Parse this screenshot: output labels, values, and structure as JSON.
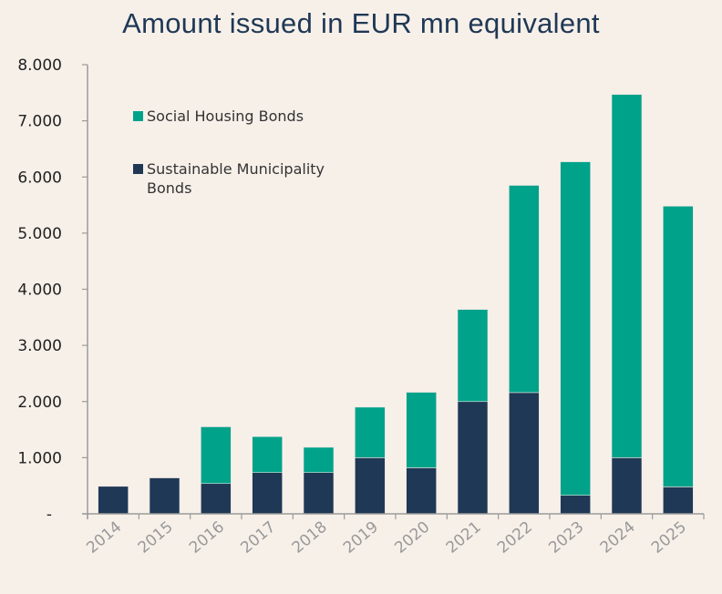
{
  "chart_data": {
    "type": "bar",
    "stacked": true,
    "title": "Amount issued in EUR mn equivalent",
    "categories": [
      "2014",
      "2015",
      "2016",
      "2017",
      "2018",
      "2019",
      "2020",
      "2021",
      "2022",
      "2023",
      "2024",
      "2025"
    ],
    "series": [
      {
        "name": "Sustainable Municipality Bonds",
        "color": "#1f3855",
        "values": [
          490,
          640,
          540,
          735,
          735,
          1000,
          820,
          2000,
          2160,
          330,
          1000,
          480
        ]
      },
      {
        "name": "Social Housing Bonds",
        "color": "#00a28a",
        "values": [
          0,
          0,
          1010,
          640,
          450,
          900,
          1345,
          1640,
          3690,
          5940,
          6470,
          5000
        ]
      }
    ],
    "ylim": [
      0,
      8000
    ],
    "yticks": [
      0,
      1000,
      2000,
      3000,
      4000,
      5000,
      6000,
      7000,
      8000
    ],
    "ytick_labels": [
      "-",
      "1.000",
      "2.000",
      "3.000",
      "4.000",
      "5.000",
      "6.000",
      "7.000",
      "8.000"
    ],
    "grid": false,
    "legend_placement": "top-left",
    "legend_order": [
      "Social Housing Bonds",
      "Sustainable Municipality Bonds"
    ],
    "background": "#f7f0e9"
  }
}
